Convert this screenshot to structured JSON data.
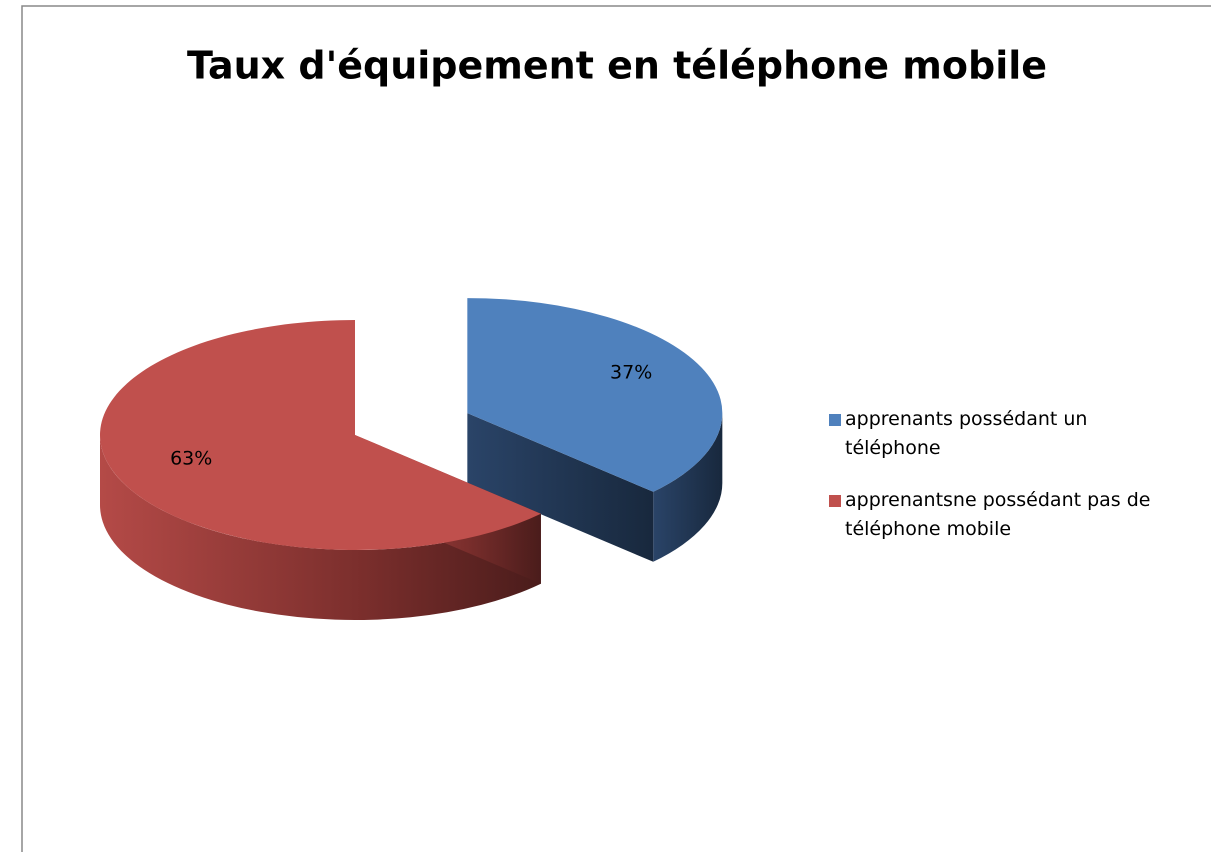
{
  "chart_data": {
    "type": "pie",
    "title": "Taux d'équipement en téléphone mobile",
    "categories": [
      "apprenants possédant un téléphone",
      "apprenantsne possédant pas de téléphone mobile"
    ],
    "values": [
      37,
      63
    ],
    "value_labels": [
      "37%",
      "63%"
    ],
    "colors": [
      "#4f81bd",
      "#c0504d"
    ],
    "legend": "right"
  }
}
